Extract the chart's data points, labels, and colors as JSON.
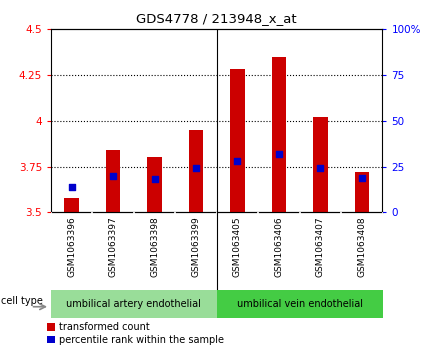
{
  "title": "GDS4778 / 213948_x_at",
  "samples": [
    "GSM1063396",
    "GSM1063397",
    "GSM1063398",
    "GSM1063399",
    "GSM1063405",
    "GSM1063406",
    "GSM1063407",
    "GSM1063408"
  ],
  "transformed_count": [
    3.58,
    3.84,
    3.8,
    3.95,
    4.28,
    4.35,
    4.02,
    3.72
  ],
  "percentile_rank": [
    14,
    20,
    18,
    24,
    28,
    32,
    24,
    19
  ],
  "ylim_left": [
    3.5,
    4.5
  ],
  "ylim_right": [
    0,
    100
  ],
  "yticks_left": [
    3.5,
    3.75,
    4.0,
    4.25,
    4.5
  ],
  "yticks_right": [
    0,
    25,
    50,
    75,
    100
  ],
  "ytick_labels_left": [
    "3.5",
    "3.75",
    "4",
    "4.25",
    "4.5"
  ],
  "ytick_labels_right": [
    "0",
    "25",
    "50",
    "75",
    "100%"
  ],
  "grid_lines": [
    3.75,
    4.0,
    4.25
  ],
  "bar_color": "#cc0000",
  "dot_color": "#0000cc",
  "bar_bottom": 3.5,
  "group1_label": "umbilical artery endothelial",
  "group2_label": "umbilical vein endothelial",
  "group1_color": "#99dd99",
  "group2_color": "#44cc44",
  "cell_type_label": "cell type",
  "legend_label_red": "transformed count",
  "legend_label_blue": "percentile rank within the sample",
  "tick_bg_color": "#c8c8c8",
  "plot_bg_color": "#ffffff",
  "group_split": 4,
  "bar_width": 0.35
}
